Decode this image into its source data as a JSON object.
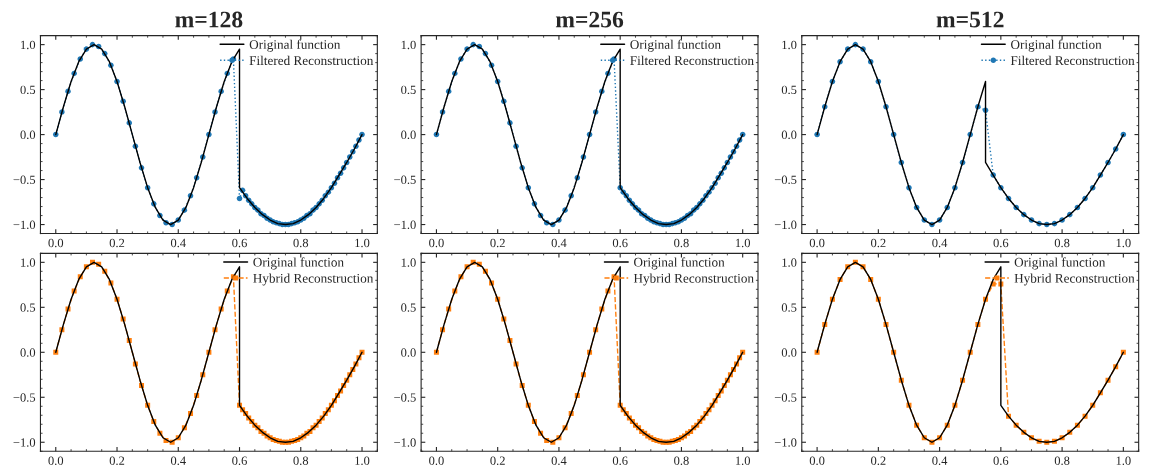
{
  "chart_data": [
    {
      "type": "line",
      "title": "m=128",
      "legend": "top right",
      "grid": false,
      "xlim": [
        -0.05,
        1.05
      ],
      "ylim": [
        -1.1,
        1.1
      ],
      "xticks": [
        {
          "value": 0,
          "label": "0.0"
        },
        {
          "value": 0.2,
          "label": "0.2"
        },
        {
          "value": 0.4,
          "label": "0.4"
        },
        {
          "value": 0.6,
          "label": "0.6"
        },
        {
          "value": 0.8,
          "label": "0.8"
        },
        {
          "value": 1,
          "label": "1.0"
        }
      ],
      "yticks": [
        {
          "value": -1,
          "label": "−1.0"
        },
        {
          "value": -0.5,
          "label": "−0.5"
        },
        {
          "value": 0,
          "label": "0.0"
        },
        {
          "value": 0.5,
          "label": "0.5"
        },
        {
          "value": 1,
          "label": "1.0"
        }
      ],
      "series": [
        {
          "name": "Original function",
          "type": "line",
          "color": "#000000",
          "line_style": "solid",
          "marker": "none",
          "x": [
            0,
            0.025,
            0.05,
            0.075,
            0.1,
            0.125,
            0.15,
            0.175,
            0.2,
            0.225,
            0.25,
            0.275,
            0.3,
            0.325,
            0.35,
            0.375,
            0.4,
            0.425,
            0.45,
            0.475,
            0.5,
            0.525,
            0.55,
            0.575,
            0.6,
            0.6,
            0.625,
            0.65,
            0.675,
            0.7,
            0.725,
            0.75,
            0.775,
            0.8,
            0.825,
            0.85,
            0.875,
            0.9,
            0.925,
            0.95,
            0.975,
            1
          ],
          "values": [
            0,
            0.31,
            0.59,
            0.81,
            0.95,
            1,
            0.95,
            0.81,
            0.59,
            0.31,
            0,
            -0.31,
            -0.59,
            -0.81,
            -0.95,
            -1,
            -0.95,
            -0.81,
            -0.59,
            -0.31,
            0,
            0.31,
            0.59,
            0.81,
            0.95,
            -0.59,
            -0.71,
            -0.81,
            -0.89,
            -0.95,
            -0.99,
            -1,
            -0.99,
            -0.95,
            -0.89,
            -0.81,
            -0.71,
            -0.59,
            -0.45,
            -0.31,
            -0.16,
            0
          ]
        },
        {
          "name": "Filtered Reconstruction",
          "type": "line",
          "color": "#1f77b4",
          "line_style": "dotted",
          "marker": "circle",
          "x": [
            0,
            0.02,
            0.04,
            0.06,
            0.08,
            0.1,
            0.12,
            0.14,
            0.16,
            0.18,
            0.2,
            0.22,
            0.24,
            0.26,
            0.28,
            0.3,
            0.32,
            0.34,
            0.36,
            0.38,
            0.4,
            0.42,
            0.44,
            0.46,
            0.48,
            0.5,
            0.52,
            0.54,
            0.56,
            0.58,
            0.6,
            0.61,
            0.62,
            0.63,
            0.64,
            0.65,
            0.66,
            0.67,
            0.68,
            0.69,
            0.7,
            0.71,
            0.72,
            0.73,
            0.74,
            0.75,
            0.76,
            0.77,
            0.78,
            0.79,
            0.8,
            0.81,
            0.82,
            0.83,
            0.84,
            0.85,
            0.86,
            0.87,
            0.88,
            0.89,
            0.9,
            0.91,
            0.92,
            0.93,
            0.94,
            0.95,
            0.96,
            0.97,
            0.98,
            0.99,
            1
          ],
          "values": [
            0,
            0.25,
            0.48,
            0.68,
            0.84,
            0.95,
            1,
            0.98,
            0.9,
            0.77,
            0.59,
            0.37,
            0.13,
            -0.13,
            -0.37,
            -0.59,
            -0.77,
            -0.9,
            -0.98,
            -1,
            -0.95,
            -0.84,
            -0.68,
            -0.48,
            -0.25,
            0,
            0.25,
            0.48,
            0.68,
            0.84,
            -0.71,
            -0.62,
            -0.68,
            -0.73,
            -0.77,
            -0.81,
            -0.84,
            -0.88,
            -0.9,
            -0.93,
            -0.95,
            -0.97,
            -0.98,
            -0.99,
            -1,
            -1,
            -1,
            -0.99,
            -0.98,
            -0.97,
            -0.95,
            -0.93,
            -0.9,
            -0.88,
            -0.84,
            -0.81,
            -0.77,
            -0.73,
            -0.68,
            -0.64,
            -0.59,
            -0.54,
            -0.48,
            -0.43,
            -0.37,
            -0.31,
            -0.25,
            -0.19,
            -0.13,
            -0.06,
            0
          ]
        }
      ]
    },
    {
      "type": "line",
      "title": "m=256",
      "legend": "top right",
      "grid": false,
      "xlim": [
        -0.05,
        1.05
      ],
      "ylim": [
        -1.1,
        1.1
      ],
      "xticks": [
        {
          "value": 0,
          "label": "0.0"
        },
        {
          "value": 0.2,
          "label": "0.2"
        },
        {
          "value": 0.4,
          "label": "0.4"
        },
        {
          "value": 0.6,
          "label": "0.6"
        },
        {
          "value": 0.8,
          "label": "0.8"
        },
        {
          "value": 1,
          "label": "1.0"
        }
      ],
      "yticks": [
        {
          "value": -1,
          "label": "−1.0"
        },
        {
          "value": -0.5,
          "label": "−0.5"
        },
        {
          "value": 0,
          "label": "0.0"
        },
        {
          "value": 0.5,
          "label": "0.5"
        },
        {
          "value": 1,
          "label": "1.0"
        }
      ],
      "series": [
        {
          "name": "Original function",
          "type": "line",
          "color": "#000000",
          "line_style": "solid",
          "marker": "none",
          "x": [
            0,
            0.025,
            0.05,
            0.075,
            0.1,
            0.125,
            0.15,
            0.175,
            0.2,
            0.225,
            0.25,
            0.275,
            0.3,
            0.325,
            0.35,
            0.375,
            0.4,
            0.425,
            0.45,
            0.475,
            0.5,
            0.525,
            0.55,
            0.575,
            0.6,
            0.6,
            0.625,
            0.65,
            0.675,
            0.7,
            0.725,
            0.75,
            0.775,
            0.8,
            0.825,
            0.85,
            0.875,
            0.9,
            0.925,
            0.95,
            0.975,
            1
          ],
          "values": [
            0,
            0.31,
            0.59,
            0.81,
            0.95,
            1,
            0.95,
            0.81,
            0.59,
            0.31,
            0,
            -0.31,
            -0.59,
            -0.81,
            -0.95,
            -1,
            -0.95,
            -0.81,
            -0.59,
            -0.31,
            0,
            0.31,
            0.59,
            0.81,
            0.95,
            -0.59,
            -0.71,
            -0.81,
            -0.89,
            -0.95,
            -0.99,
            -1,
            -0.99,
            -0.95,
            -0.89,
            -0.81,
            -0.71,
            -0.59,
            -0.45,
            -0.31,
            -0.16,
            0
          ]
        },
        {
          "name": "Filtered Reconstruction",
          "type": "line",
          "color": "#1f77b4",
          "line_style": "dotted",
          "marker": "circle",
          "x": [
            0,
            0.02,
            0.04,
            0.06,
            0.08,
            0.1,
            0.12,
            0.14,
            0.16,
            0.18,
            0.2,
            0.22,
            0.24,
            0.26,
            0.28,
            0.3,
            0.32,
            0.34,
            0.36,
            0.38,
            0.4,
            0.42,
            0.44,
            0.46,
            0.48,
            0.5,
            0.52,
            0.54,
            0.56,
            0.58,
            0.6,
            0.61,
            0.62,
            0.63,
            0.64,
            0.65,
            0.66,
            0.67,
            0.68,
            0.69,
            0.7,
            0.71,
            0.72,
            0.73,
            0.74,
            0.75,
            0.76,
            0.77,
            0.78,
            0.79,
            0.8,
            0.81,
            0.82,
            0.83,
            0.84,
            0.85,
            0.86,
            0.87,
            0.88,
            0.89,
            0.9,
            0.91,
            0.92,
            0.93,
            0.94,
            0.95,
            0.96,
            0.97,
            0.98,
            0.99,
            1
          ],
          "values": [
            0,
            0.25,
            0.48,
            0.68,
            0.84,
            0.95,
            1,
            0.98,
            0.9,
            0.77,
            0.59,
            0.37,
            0.13,
            -0.13,
            -0.37,
            -0.59,
            -0.77,
            -0.9,
            -0.98,
            -1,
            -0.95,
            -0.84,
            -0.68,
            -0.48,
            -0.25,
            0,
            0.25,
            0.48,
            0.68,
            0.84,
            -0.59,
            -0.64,
            -0.68,
            -0.73,
            -0.77,
            -0.81,
            -0.84,
            -0.88,
            -0.9,
            -0.93,
            -0.95,
            -0.97,
            -0.98,
            -0.99,
            -1,
            -1,
            -1,
            -0.99,
            -0.98,
            -0.97,
            -0.95,
            -0.93,
            -0.9,
            -0.88,
            -0.84,
            -0.81,
            -0.77,
            -0.73,
            -0.68,
            -0.64,
            -0.59,
            -0.54,
            -0.48,
            -0.43,
            -0.37,
            -0.31,
            -0.25,
            -0.19,
            -0.13,
            -0.06,
            0
          ]
        }
      ]
    },
    {
      "type": "line",
      "title": "m=512",
      "legend": "top right",
      "grid": false,
      "xlim": [
        -0.05,
        1.05
      ],
      "ylim": [
        -1.1,
        1.1
      ],
      "xticks": [
        {
          "value": 0,
          "label": "0.0"
        },
        {
          "value": 0.2,
          "label": "0.2"
        },
        {
          "value": 0.4,
          "label": "0.4"
        },
        {
          "value": 0.6,
          "label": "0.6"
        },
        {
          "value": 0.8,
          "label": "0.8"
        },
        {
          "value": 1,
          "label": "1.0"
        }
      ],
      "yticks": [
        {
          "value": -1,
          "label": "−1.0"
        },
        {
          "value": -0.5,
          "label": "−0.5"
        },
        {
          "value": 0,
          "label": "0.0"
        },
        {
          "value": 0.5,
          "label": "0.5"
        },
        {
          "value": 1,
          "label": "1.0"
        }
      ],
      "series": [
        {
          "name": "Original function",
          "type": "line",
          "color": "#000000",
          "line_style": "solid",
          "marker": "none",
          "x": [
            0,
            0.025,
            0.05,
            0.075,
            0.1,
            0.125,
            0.15,
            0.175,
            0.2,
            0.225,
            0.25,
            0.275,
            0.3,
            0.325,
            0.35,
            0.375,
            0.4,
            0.425,
            0.45,
            0.475,
            0.5,
            0.525,
            0.55,
            0.55,
            0.575,
            0.6,
            0.625,
            0.65,
            0.675,
            0.7,
            0.725,
            0.75,
            0.775,
            0.8,
            0.825,
            0.85,
            0.875,
            0.9,
            0.925,
            0.95,
            0.975,
            1
          ],
          "values": [
            0,
            0.31,
            0.59,
            0.81,
            0.95,
            1,
            0.95,
            0.81,
            0.59,
            0.31,
            0,
            -0.31,
            -0.59,
            -0.81,
            -0.95,
            -1,
            -0.95,
            -0.81,
            -0.59,
            -0.31,
            0,
            0.31,
            0.59,
            -0.31,
            -0.45,
            -0.59,
            -0.71,
            -0.81,
            -0.89,
            -0.95,
            -0.99,
            -1,
            -0.99,
            -0.95,
            -0.89,
            -0.81,
            -0.71,
            -0.59,
            -0.45,
            -0.31,
            -0.16,
            0
          ]
        },
        {
          "name": "Filtered Reconstruction",
          "type": "line",
          "color": "#1f77b4",
          "line_style": "dotted",
          "marker": "circle",
          "x": [
            0,
            0.025,
            0.05,
            0.075,
            0.1,
            0.125,
            0.15,
            0.175,
            0.2,
            0.225,
            0.25,
            0.275,
            0.3,
            0.325,
            0.35,
            0.375,
            0.4,
            0.425,
            0.45,
            0.475,
            0.5,
            0.525,
            0.55,
            0.575,
            0.6,
            0.625,
            0.65,
            0.675,
            0.7,
            0.725,
            0.75,
            0.775,
            0.8,
            0.825,
            0.85,
            0.875,
            0.9,
            0.925,
            0.95,
            0.975,
            1
          ],
          "values": [
            0,
            0.31,
            0.59,
            0.81,
            0.95,
            1,
            0.95,
            0.81,
            0.59,
            0.31,
            0,
            -0.31,
            -0.59,
            -0.81,
            -0.95,
            -1,
            -0.95,
            -0.81,
            -0.59,
            -0.31,
            0,
            0.31,
            0.27,
            -0.45,
            -0.59,
            -0.71,
            -0.81,
            -0.89,
            -0.95,
            -0.99,
            -1,
            -0.99,
            -0.95,
            -0.89,
            -0.81,
            -0.71,
            -0.59,
            -0.45,
            -0.31,
            -0.16,
            0
          ]
        }
      ]
    },
    {
      "type": "line",
      "legend": "top right",
      "grid": false,
      "xlim": [
        -0.05,
        1.05
      ],
      "ylim": [
        -1.1,
        1.1
      ],
      "xticks": [
        {
          "value": 0,
          "label": "0.0"
        },
        {
          "value": 0.2,
          "label": "0.2"
        },
        {
          "value": 0.4,
          "label": "0.4"
        },
        {
          "value": 0.6,
          "label": "0.6"
        },
        {
          "value": 0.8,
          "label": "0.8"
        },
        {
          "value": 1,
          "label": "1.0"
        }
      ],
      "yticks": [
        {
          "value": -1,
          "label": "−1.0"
        },
        {
          "value": -0.5,
          "label": "−0.5"
        },
        {
          "value": 0,
          "label": "0.0"
        },
        {
          "value": 0.5,
          "label": "0.5"
        },
        {
          "value": 1,
          "label": "1.0"
        }
      ],
      "series": [
        {
          "name": "Original function",
          "type": "line",
          "color": "#000000",
          "line_style": "solid",
          "marker": "none",
          "x": [
            0,
            0.025,
            0.05,
            0.075,
            0.1,
            0.125,
            0.15,
            0.175,
            0.2,
            0.225,
            0.25,
            0.275,
            0.3,
            0.325,
            0.35,
            0.375,
            0.4,
            0.425,
            0.45,
            0.475,
            0.5,
            0.525,
            0.55,
            0.575,
            0.6,
            0.6,
            0.625,
            0.65,
            0.675,
            0.7,
            0.725,
            0.75,
            0.775,
            0.8,
            0.825,
            0.85,
            0.875,
            0.9,
            0.925,
            0.95,
            0.975,
            1
          ],
          "values": [
            0,
            0.31,
            0.59,
            0.81,
            0.95,
            1,
            0.95,
            0.81,
            0.59,
            0.31,
            0,
            -0.31,
            -0.59,
            -0.81,
            -0.95,
            -1,
            -0.95,
            -0.81,
            -0.59,
            -0.31,
            0,
            0.31,
            0.59,
            0.81,
            0.95,
            -0.59,
            -0.71,
            -0.81,
            -0.89,
            -0.95,
            -0.99,
            -1,
            -0.99,
            -0.95,
            -0.89,
            -0.81,
            -0.71,
            -0.59,
            -0.45,
            -0.31,
            -0.16,
            0
          ]
        },
        {
          "name": "Hybrid Reconstruction",
          "type": "line",
          "color": "#ff7f0e",
          "line_style": "dashed",
          "marker": "square",
          "x": [
            0,
            0.02,
            0.04,
            0.06,
            0.08,
            0.1,
            0.12,
            0.14,
            0.16,
            0.18,
            0.2,
            0.22,
            0.24,
            0.26,
            0.28,
            0.3,
            0.32,
            0.34,
            0.36,
            0.38,
            0.4,
            0.42,
            0.44,
            0.46,
            0.48,
            0.5,
            0.52,
            0.54,
            0.56,
            0.58,
            0.6,
            0.61,
            0.62,
            0.63,
            0.64,
            0.65,
            0.66,
            0.67,
            0.68,
            0.69,
            0.7,
            0.71,
            0.72,
            0.73,
            0.74,
            0.75,
            0.76,
            0.77,
            0.78,
            0.79,
            0.8,
            0.81,
            0.82,
            0.83,
            0.84,
            0.85,
            0.86,
            0.87,
            0.88,
            0.89,
            0.9,
            0.91,
            0.92,
            0.93,
            0.94,
            0.95,
            0.96,
            0.97,
            0.98,
            0.99,
            1
          ],
          "values": [
            0,
            0.25,
            0.48,
            0.68,
            0.84,
            0.95,
            1,
            0.98,
            0.9,
            0.77,
            0.59,
            0.37,
            0.13,
            -0.13,
            -0.37,
            -0.59,
            -0.77,
            -0.9,
            -0.98,
            -1,
            -0.95,
            -0.84,
            -0.68,
            -0.48,
            -0.25,
            0,
            0.25,
            0.48,
            0.68,
            0.84,
            -0.59,
            -0.64,
            -0.68,
            -0.73,
            -0.77,
            -0.81,
            -0.84,
            -0.88,
            -0.9,
            -0.93,
            -0.95,
            -0.97,
            -0.98,
            -0.99,
            -1,
            -1,
            -1,
            -0.99,
            -0.98,
            -0.97,
            -0.95,
            -0.93,
            -0.9,
            -0.88,
            -0.84,
            -0.81,
            -0.77,
            -0.73,
            -0.68,
            -0.64,
            -0.59,
            -0.54,
            -0.48,
            -0.43,
            -0.37,
            -0.31,
            -0.25,
            -0.19,
            -0.13,
            -0.06,
            0
          ]
        }
      ]
    },
    {
      "type": "line",
      "legend": "top right",
      "grid": false,
      "xlim": [
        -0.05,
        1.05
      ],
      "ylim": [
        -1.1,
        1.1
      ],
      "xticks": [
        {
          "value": 0,
          "label": "0.0"
        },
        {
          "value": 0.2,
          "label": "0.2"
        },
        {
          "value": 0.4,
          "label": "0.4"
        },
        {
          "value": 0.6,
          "label": "0.6"
        },
        {
          "value": 0.8,
          "label": "0.8"
        },
        {
          "value": 1,
          "label": "1.0"
        }
      ],
      "yticks": [
        {
          "value": -1,
          "label": "−1.0"
        },
        {
          "value": -0.5,
          "label": "−0.5"
        },
        {
          "value": 0,
          "label": "0.0"
        },
        {
          "value": 0.5,
          "label": "0.5"
        },
        {
          "value": 1,
          "label": "1.0"
        }
      ],
      "series": [
        {
          "name": "Original function",
          "type": "line",
          "color": "#000000",
          "line_style": "solid",
          "marker": "none",
          "x": [
            0,
            0.025,
            0.05,
            0.075,
            0.1,
            0.125,
            0.15,
            0.175,
            0.2,
            0.225,
            0.25,
            0.275,
            0.3,
            0.325,
            0.35,
            0.375,
            0.4,
            0.425,
            0.45,
            0.475,
            0.5,
            0.525,
            0.55,
            0.575,
            0.6,
            0.6,
            0.625,
            0.65,
            0.675,
            0.7,
            0.725,
            0.75,
            0.775,
            0.8,
            0.825,
            0.85,
            0.875,
            0.9,
            0.925,
            0.95,
            0.975,
            1
          ],
          "values": [
            0,
            0.31,
            0.59,
            0.81,
            0.95,
            1,
            0.95,
            0.81,
            0.59,
            0.31,
            0,
            -0.31,
            -0.59,
            -0.81,
            -0.95,
            -1,
            -0.95,
            -0.81,
            -0.59,
            -0.31,
            0,
            0.31,
            0.59,
            0.81,
            0.95,
            -0.59,
            -0.71,
            -0.81,
            -0.89,
            -0.95,
            -0.99,
            -1,
            -0.99,
            -0.95,
            -0.89,
            -0.81,
            -0.71,
            -0.59,
            -0.45,
            -0.31,
            -0.16,
            0
          ]
        },
        {
          "name": "Hybrid Reconstruction",
          "type": "line",
          "color": "#ff7f0e",
          "line_style": "dashed",
          "marker": "square",
          "x": [
            0,
            0.02,
            0.04,
            0.06,
            0.08,
            0.1,
            0.12,
            0.14,
            0.16,
            0.18,
            0.2,
            0.22,
            0.24,
            0.26,
            0.28,
            0.3,
            0.32,
            0.34,
            0.36,
            0.38,
            0.4,
            0.42,
            0.44,
            0.46,
            0.48,
            0.5,
            0.52,
            0.54,
            0.56,
            0.58,
            0.6,
            0.61,
            0.62,
            0.63,
            0.64,
            0.65,
            0.66,
            0.67,
            0.68,
            0.69,
            0.7,
            0.71,
            0.72,
            0.73,
            0.74,
            0.75,
            0.76,
            0.77,
            0.78,
            0.79,
            0.8,
            0.81,
            0.82,
            0.83,
            0.84,
            0.85,
            0.86,
            0.87,
            0.88,
            0.89,
            0.9,
            0.91,
            0.92,
            0.93,
            0.94,
            0.95,
            0.96,
            0.97,
            0.98,
            0.99,
            1
          ],
          "values": [
            0,
            0.25,
            0.48,
            0.68,
            0.84,
            0.95,
            1,
            0.98,
            0.9,
            0.77,
            0.59,
            0.37,
            0.13,
            -0.13,
            -0.37,
            -0.59,
            -0.77,
            -0.9,
            -0.98,
            -1,
            -0.95,
            -0.84,
            -0.68,
            -0.48,
            -0.25,
            0,
            0.25,
            0.48,
            0.68,
            0.84,
            -0.59,
            -0.64,
            -0.68,
            -0.73,
            -0.77,
            -0.81,
            -0.84,
            -0.88,
            -0.9,
            -0.93,
            -0.95,
            -0.97,
            -0.98,
            -0.99,
            -1,
            -1,
            -1,
            -0.99,
            -0.98,
            -0.97,
            -0.95,
            -0.93,
            -0.9,
            -0.88,
            -0.84,
            -0.81,
            -0.77,
            -0.73,
            -0.68,
            -0.64,
            -0.59,
            -0.54,
            -0.48,
            -0.43,
            -0.37,
            -0.31,
            -0.25,
            -0.19,
            -0.13,
            -0.06,
            0
          ]
        }
      ]
    },
    {
      "type": "line",
      "legend": "top right",
      "grid": false,
      "xlim": [
        -0.05,
        1.05
      ],
      "ylim": [
        -1.1,
        1.1
      ],
      "xticks": [
        {
          "value": 0,
          "label": "0.0"
        },
        {
          "value": 0.2,
          "label": "0.2"
        },
        {
          "value": 0.4,
          "label": "0.4"
        },
        {
          "value": 0.6,
          "label": "0.6"
        },
        {
          "value": 0.8,
          "label": "0.8"
        },
        {
          "value": 1,
          "label": "1.0"
        }
      ],
      "yticks": [
        {
          "value": -1,
          "label": "−1.0"
        },
        {
          "value": -0.5,
          "label": "−0.5"
        },
        {
          "value": 0,
          "label": "0.0"
        },
        {
          "value": 0.5,
          "label": "0.5"
        },
        {
          "value": 1,
          "label": "1.0"
        }
      ],
      "series": [
        {
          "name": "Original function",
          "type": "line",
          "color": "#000000",
          "line_style": "solid",
          "marker": "none",
          "x": [
            0,
            0.025,
            0.05,
            0.075,
            0.1,
            0.125,
            0.15,
            0.175,
            0.2,
            0.225,
            0.25,
            0.275,
            0.3,
            0.325,
            0.35,
            0.375,
            0.4,
            0.425,
            0.45,
            0.475,
            0.5,
            0.525,
            0.55,
            0.575,
            0.6,
            0.6,
            0.625,
            0.65,
            0.675,
            0.7,
            0.725,
            0.75,
            0.775,
            0.8,
            0.825,
            0.85,
            0.875,
            0.9,
            0.925,
            0.95,
            0.975,
            1
          ],
          "values": [
            0,
            0.31,
            0.59,
            0.81,
            0.95,
            1,
            0.95,
            0.81,
            0.59,
            0.31,
            0,
            -0.31,
            -0.59,
            -0.81,
            -0.95,
            -1,
            -0.95,
            -0.81,
            -0.59,
            -0.31,
            0,
            0.31,
            0.59,
            0.81,
            0.95,
            -0.59,
            -0.71,
            -0.81,
            -0.89,
            -0.95,
            -0.99,
            -1,
            -0.99,
            -0.95,
            -0.89,
            -0.81,
            -0.71,
            -0.59,
            -0.45,
            -0.31,
            -0.16,
            0
          ]
        },
        {
          "name": "Hybrid Reconstruction",
          "type": "line",
          "color": "#ff7f0e",
          "line_style": "dashed",
          "marker": "square",
          "x": [
            0,
            0.025,
            0.05,
            0.075,
            0.1,
            0.125,
            0.15,
            0.175,
            0.2,
            0.225,
            0.25,
            0.275,
            0.3,
            0.325,
            0.35,
            0.375,
            0.4,
            0.425,
            0.45,
            0.475,
            0.5,
            0.525,
            0.55,
            0.575,
            0.6,
            0.625,
            0.65,
            0.675,
            0.7,
            0.725,
            0.75,
            0.775,
            0.8,
            0.825,
            0.85,
            0.875,
            0.9,
            0.925,
            0.95,
            0.975,
            1
          ],
          "values": [
            0,
            0.31,
            0.59,
            0.81,
            0.95,
            1,
            0.95,
            0.81,
            0.59,
            0.31,
            0,
            -0.31,
            -0.59,
            -0.81,
            -0.95,
            -1,
            -0.95,
            -0.81,
            -0.59,
            -0.31,
            0,
            0.31,
            0.59,
            0.76,
            0.76,
            -0.71,
            -0.81,
            -0.89,
            -0.95,
            -0.99,
            -1,
            -0.99,
            -0.95,
            -0.89,
            -0.81,
            -0.71,
            -0.59,
            -0.45,
            -0.31,
            -0.16,
            0
          ]
        }
      ]
    }
  ]
}
